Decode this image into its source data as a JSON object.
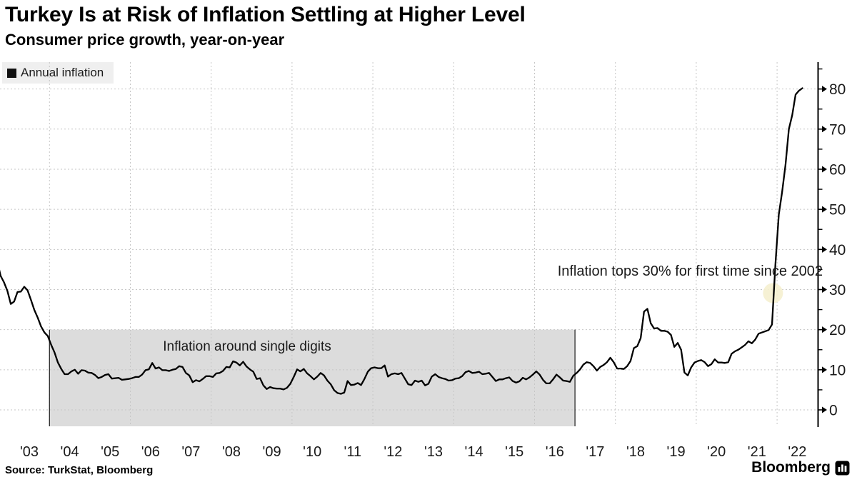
{
  "header": {
    "title": "Turkey Is at Risk of Inflation Settling at Higher Level",
    "subtitle": "Consumer price growth, year-on-year"
  },
  "legend": {
    "label": "Annual inflation",
    "swatch_color": "#000000"
  },
  "footer": {
    "source": "Source: TurkStat, Bloomberg",
    "brand": "Bloomberg"
  },
  "chart_data": {
    "type": "line",
    "title": "Turkey Is at Risk of Inflation Settling at Higher Level",
    "subtitle": "Consumer price growth, year-on-year",
    "units": "% year-on-year",
    "ylim": [
      -4,
      86
    ],
    "y_ticks": [
      0,
      10,
      20,
      30,
      40,
      50,
      60,
      70,
      80
    ],
    "y_minor_ticks": [
      5,
      15,
      25,
      35,
      45,
      55,
      65,
      75,
      85
    ],
    "x_tick_labels": [
      "'03",
      "'04",
      "'05",
      "'06",
      "'07",
      "'08",
      "'09",
      "'10",
      "'11",
      "'12",
      "'13",
      "'14",
      "'15",
      "'16",
      "'17",
      "'18",
      "'19",
      "'20",
      "'21",
      "'22"
    ],
    "grid": "dotted; horizontal every 10, vertical every 2 years (Jan of even years)",
    "legend_position": "top-left",
    "axis_side": "right",
    "band": {
      "label": "Inflation around single digits",
      "from": "2004-01",
      "to": "2017-01",
      "top_value": 20,
      "fill": "#dcdcdc"
    },
    "annotation": {
      "text": "Inflation tops 30% for first time since 2002",
      "highlight_month": "2021-12",
      "highlight_value": 30,
      "highlight_color": "#f5efcf"
    },
    "colors": {
      "line": "#000000",
      "band": "#dcdcdc",
      "grid": "#c6c6c6",
      "highlight": "#f5efcf"
    },
    "series": [
      {
        "name": "Annual inflation",
        "frequency": "monthly",
        "start": "2002-09",
        "end": "2022-08",
        "values": [
          37.0,
          33.4,
          31.8,
          29.7,
          26.4,
          27.0,
          29.4,
          29.5,
          30.7,
          29.8,
          27.4,
          24.9,
          23.0,
          20.8,
          19.3,
          18.4,
          16.2,
          14.3,
          11.8,
          10.2,
          8.9,
          8.9,
          9.6,
          10.0,
          9.0,
          9.9,
          9.8,
          9.3,
          9.2,
          8.7,
          7.9,
          8.2,
          8.7,
          8.9,
          7.8,
          7.9,
          8.0,
          7.5,
          7.6,
          7.7,
          7.9,
          8.2,
          8.2,
          8.8,
          9.9,
          10.1,
          11.7,
          10.3,
          10.6,
          9.9,
          9.9,
          9.7,
          10.0,
          10.2,
          10.9,
          10.7,
          9.2,
          8.6,
          6.9,
          7.4,
          7.1,
          7.7,
          8.4,
          8.4,
          8.2,
          9.1,
          9.2,
          9.7,
          10.7,
          10.6,
          12.1,
          11.8,
          11.1,
          12.0,
          10.8,
          10.1,
          9.5,
          7.7,
          7.9,
          6.1,
          5.2,
          5.7,
          5.4,
          5.3,
          5.3,
          5.1,
          5.5,
          6.5,
          8.2,
          10.1,
          9.6,
          10.2,
          9.1,
          8.4,
          7.6,
          8.3,
          9.2,
          8.6,
          7.3,
          6.4,
          4.9,
          4.2,
          4.0,
          4.3,
          7.2,
          6.2,
          6.3,
          6.7,
          6.2,
          7.7,
          9.5,
          10.4,
          10.6,
          10.4,
          10.4,
          11.1,
          8.3,
          8.9,
          9.1,
          8.9,
          9.2,
          7.8,
          6.4,
          6.2,
          7.3,
          7.0,
          7.3,
          6.1,
          6.5,
          8.3,
          8.9,
          8.2,
          7.9,
          7.7,
          7.3,
          7.4,
          7.8,
          7.9,
          8.4,
          9.4,
          9.7,
          9.2,
          9.3,
          9.5,
          8.9,
          9.0,
          9.2,
          8.2,
          7.2,
          7.6,
          7.6,
          7.9,
          8.1,
          7.2,
          6.8,
          7.1,
          8.0,
          7.6,
          8.1,
          8.8,
          9.6,
          8.8,
          7.5,
          6.6,
          6.6,
          7.6,
          8.8,
          8.1,
          7.3,
          7.2,
          7.0,
          8.5,
          9.2,
          10.1,
          11.3,
          11.9,
          11.7,
          10.9,
          9.8,
          10.7,
          11.2,
          11.9,
          13.0,
          11.9,
          10.3,
          10.3,
          10.2,
          10.9,
          12.2,
          15.4,
          15.9,
          17.9,
          24.5,
          25.2,
          21.6,
          20.3,
          20.4,
          19.7,
          19.7,
          19.5,
          18.7,
          15.7,
          16.7,
          15.0,
          9.3,
          8.6,
          10.6,
          11.8,
          12.2,
          12.4,
          11.9,
          10.9,
          11.4,
          12.6,
          11.8,
          11.8,
          11.7,
          11.9,
          14.0,
          14.6,
          15.0,
          15.6,
          16.2,
          17.1,
          16.6,
          17.5,
          19.0,
          19.3,
          19.6,
          19.9,
          21.3,
          36.1,
          48.7,
          54.4,
          61.1,
          70.0,
          73.5,
          78.6,
          79.6,
          80.2
        ]
      }
    ]
  }
}
